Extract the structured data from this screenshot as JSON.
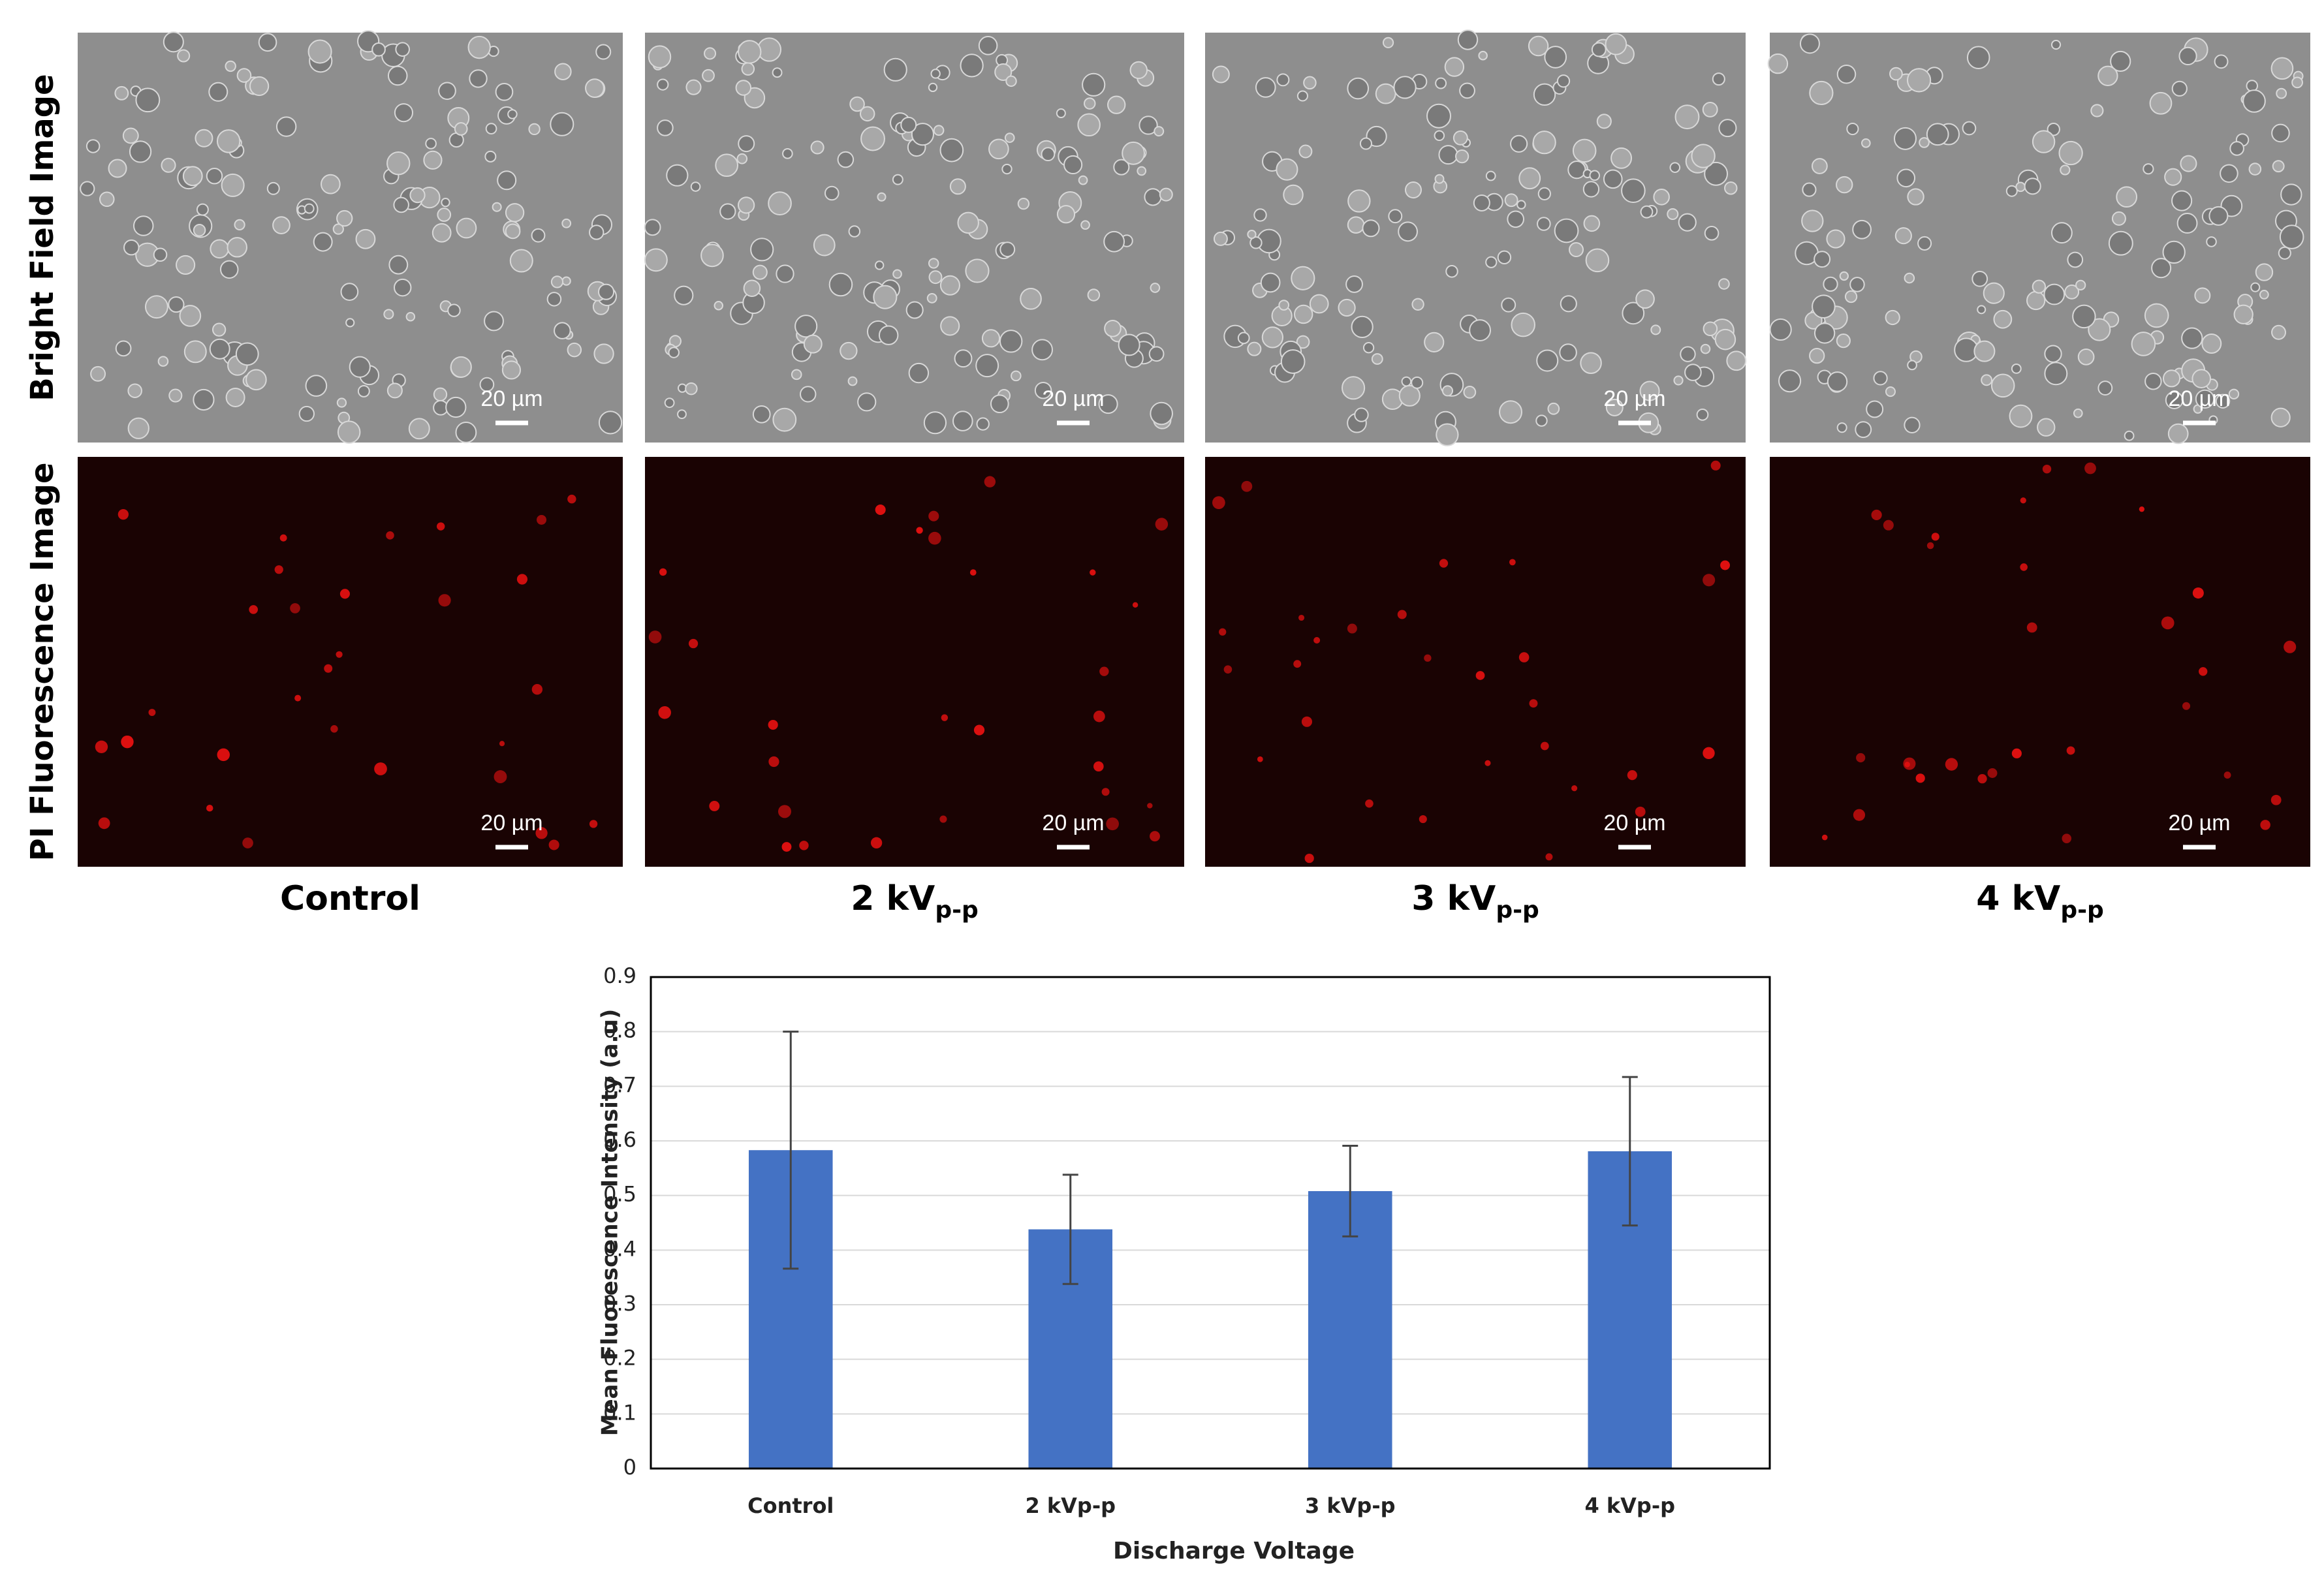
{
  "figure": {
    "row_labels": [
      "Bright Field Image",
      "PI Fluorescence Image"
    ],
    "column_labels": [
      {
        "main": "Control"
      },
      {
        "main": "2 kV",
        "sub": "p-p"
      },
      {
        "main": "3 kV",
        "sub": "p-p"
      },
      {
        "main": "4 kV",
        "sub": "p-p"
      }
    ],
    "scale_bar_label": "20 µm"
  },
  "chart_data": {
    "type": "bar",
    "xlabel": "Discharge Voltage",
    "ylabel": "Mean Fluorescence Intensity (a.u)",
    "categories": [
      "Control",
      "2 kVp-p",
      "3 kVp-p",
      "4 kVp-p"
    ],
    "values": [
      0.583,
      0.438,
      0.508,
      0.581
    ],
    "errors": [
      0.217,
      0.1,
      0.083,
      0.136
    ],
    "color": "#4472c4",
    "ylim": [
      0,
      0.9
    ],
    "yticks": [
      0,
      0.1,
      0.2,
      0.3,
      0.4,
      0.5,
      0.6,
      0.7,
      0.8,
      0.9
    ],
    "grid": true
  }
}
